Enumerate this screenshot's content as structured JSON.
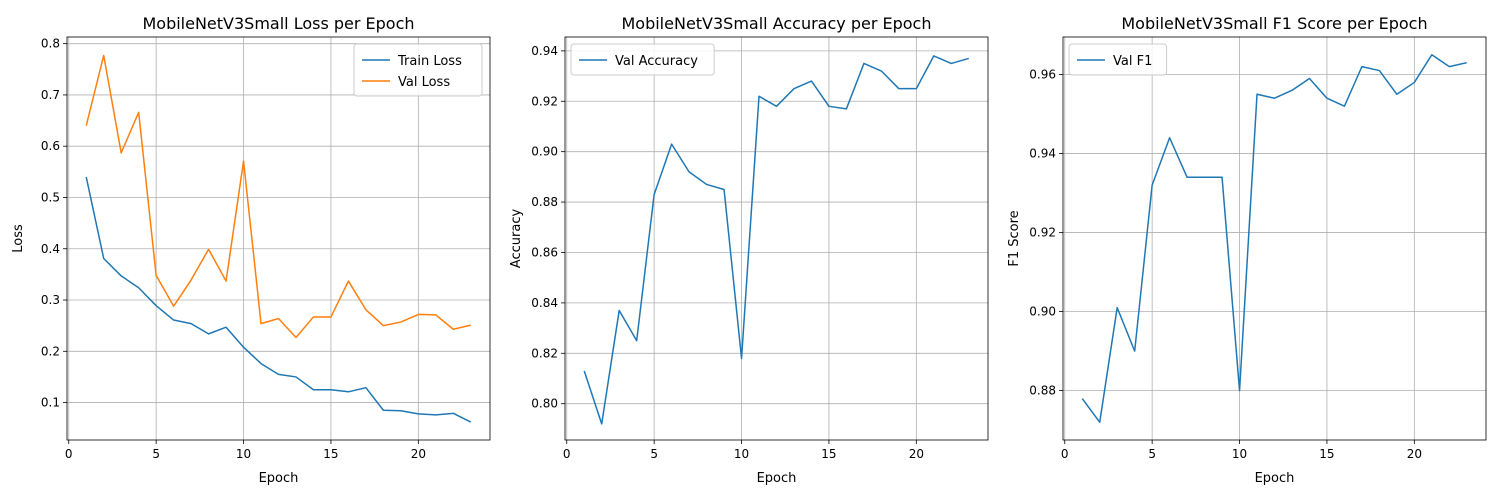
{
  "colors": {
    "blue": "#1f77b4",
    "orange": "#ff7f0e",
    "grid": "#b0b0b0"
  },
  "chart_data": [
    {
      "type": "line",
      "title": "MobileNetV3Small Loss per Epoch",
      "xlabel": "Epoch",
      "ylabel": "Loss",
      "xlim": [
        -0.1,
        24.1
      ],
      "ylim": [
        0.027,
        0.813
      ],
      "xticks": [
        0,
        5,
        10,
        15,
        20
      ],
      "yticks": [
        0.1,
        0.2,
        0.3,
        0.4,
        0.5,
        0.6,
        0.7,
        0.8
      ],
      "yformat": 1,
      "grid": true,
      "legend_position": "top-right",
      "x": [
        1,
        2,
        3,
        4,
        5,
        6,
        7,
        8,
        9,
        10,
        11,
        12,
        13,
        14,
        15,
        16,
        17,
        18,
        19,
        20,
        21,
        22,
        23
      ],
      "series": [
        {
          "name": "Train Loss",
          "color": "#1f77b4",
          "values": [
            0.54,
            0.381,
            0.347,
            0.324,
            0.289,
            0.261,
            0.254,
            0.234,
            0.247,
            0.208,
            0.176,
            0.155,
            0.15,
            0.125,
            0.125,
            0.121,
            0.129,
            0.085,
            0.084,
            0.078,
            0.076,
            0.079,
            0.062
          ]
        },
        {
          "name": "Val Loss",
          "color": "#ff7f0e",
          "values": [
            0.64,
            0.777,
            0.587,
            0.666,
            0.348,
            0.288,
            0.339,
            0.399,
            0.337,
            0.571,
            0.254,
            0.264,
            0.227,
            0.267,
            0.267,
            0.337,
            0.281,
            0.25,
            0.257,
            0.272,
            0.271,
            0.243,
            0.251
          ]
        }
      ]
    },
    {
      "type": "line",
      "title": "MobileNetV3Small Accuracy per Epoch",
      "xlabel": "Epoch",
      "ylabel": "Accuracy",
      "xlim": [
        -0.1,
        24.1
      ],
      "ylim": [
        0.7856,
        0.9455
      ],
      "xticks": [
        0,
        5,
        10,
        15,
        20
      ],
      "yticks": [
        0.8,
        0.82,
        0.84,
        0.86,
        0.88,
        0.9,
        0.92,
        0.94
      ],
      "yformat": 2,
      "grid": true,
      "legend_position": "top-left",
      "x": [
        1,
        2,
        3,
        4,
        5,
        6,
        7,
        8,
        9,
        10,
        11,
        12,
        13,
        14,
        15,
        16,
        17,
        18,
        19,
        20,
        21,
        22,
        23
      ],
      "series": [
        {
          "name": "Val Accuracy",
          "color": "#1f77b4",
          "values": [
            0.813,
            0.792,
            0.837,
            0.825,
            0.883,
            0.903,
            0.892,
            0.887,
            0.885,
            0.818,
            0.922,
            0.918,
            0.925,
            0.928,
            0.918,
            0.917,
            0.935,
            0.932,
            0.925,
            0.925,
            0.938,
            0.935,
            0.937
          ]
        }
      ]
    },
    {
      "type": "line",
      "title": "MobileNetV3Small F1 Score per Epoch",
      "xlabel": "Epoch",
      "ylabel": "F1 Score",
      "xlim": [
        -0.1,
        24.1
      ],
      "ylim": [
        0.8675,
        0.9695
      ],
      "xticks": [
        0,
        5,
        10,
        15,
        20
      ],
      "yticks": [
        0.88,
        0.9,
        0.92,
        0.94,
        0.96
      ],
      "yformat": 2,
      "grid": true,
      "legend_position": "top-left",
      "x": [
        1,
        2,
        3,
        4,
        5,
        6,
        7,
        8,
        9,
        10,
        11,
        12,
        13,
        14,
        15,
        16,
        17,
        18,
        19,
        20,
        21,
        22,
        23
      ],
      "series": [
        {
          "name": "Val F1",
          "color": "#1f77b4",
          "values": [
            0.878,
            0.872,
            0.901,
            0.89,
            0.932,
            0.944,
            0.934,
            0.934,
            0.934,
            0.88,
            0.955,
            0.954,
            0.956,
            0.959,
            0.954,
            0.952,
            0.962,
            0.961,
            0.955,
            0.958,
            0.965,
            0.962,
            0.963
          ]
        }
      ]
    }
  ]
}
